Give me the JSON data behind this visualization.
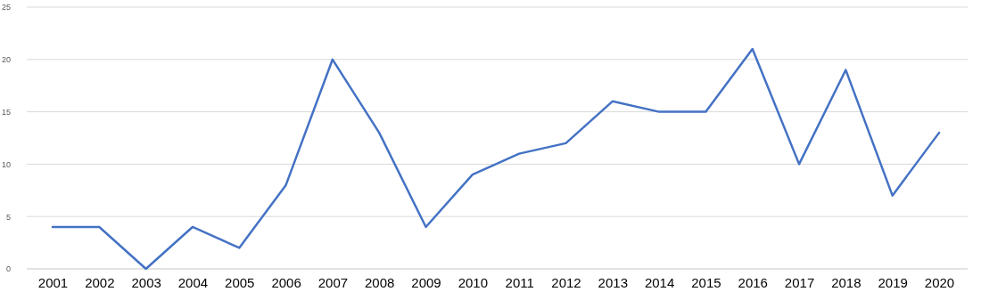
{
  "chart_data": {
    "type": "line",
    "categories": [
      "2001",
      "2002",
      "2003",
      "2004",
      "2005",
      "2006",
      "2007",
      "2008",
      "2009",
      "2010",
      "2011",
      "2012",
      "2013",
      "2014",
      "2015",
      "2016",
      "2017",
      "2018",
      "2019",
      "2020"
    ],
    "series": [
      {
        "color": "#4472c4",
        "values": [
          4,
          4,
          0,
          4,
          2,
          8,
          20,
          13,
          4,
          9,
          11,
          12,
          16,
          15,
          15,
          21,
          10,
          19,
          7,
          13
        ]
      }
    ],
    "ylim": [
      0,
      25
    ],
    "yticks": [
      0,
      5,
      10,
      15,
      20,
      25
    ],
    "grid": "y",
    "marker": "none",
    "line_style": "solid"
  }
}
